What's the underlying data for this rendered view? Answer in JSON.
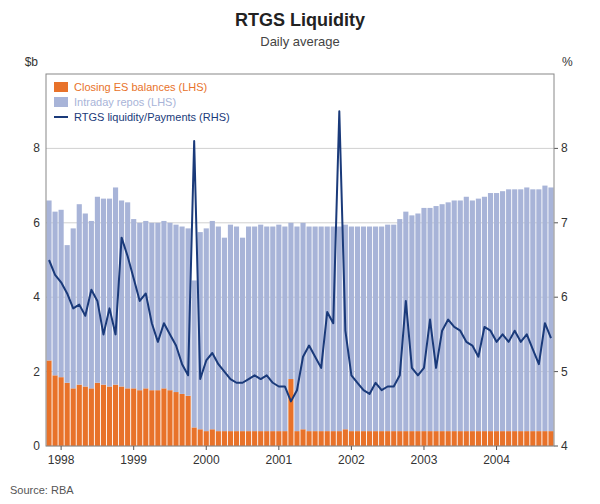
{
  "chart_data": {
    "type": "bar",
    "title": "RTGS Liquidity",
    "subtitle": "Daily average",
    "y_label": "$b",
    "y2_label": "%",
    "source": "Source: RBA",
    "stacked": true,
    "grid": true,
    "legend": "upper left",
    "categories": [
      null,
      null,
      "1998",
      null,
      null,
      null,
      null,
      null,
      null,
      null,
      null,
      null,
      null,
      null,
      "1999",
      null,
      null,
      null,
      null,
      null,
      null,
      null,
      null,
      null,
      null,
      null,
      "2000",
      null,
      null,
      null,
      null,
      null,
      null,
      null,
      null,
      null,
      null,
      null,
      "2001",
      null,
      null,
      null,
      null,
      null,
      null,
      null,
      null,
      null,
      null,
      null,
      "2002",
      null,
      null,
      null,
      null,
      null,
      null,
      null,
      null,
      null,
      null,
      null,
      "2003",
      null,
      null,
      null,
      null,
      null,
      null,
      null,
      null,
      null,
      null,
      null,
      "2004",
      null,
      null,
      null,
      null,
      null,
      null,
      null,
      null,
      null
    ],
    "ylim": [
      0,
      10
    ],
    "yticks": [
      0,
      2,
      4,
      6,
      8
    ],
    "y2lim": [
      4,
      9
    ],
    "y2ticks": [
      4,
      5,
      6,
      7,
      8
    ],
    "series": [
      {
        "name": "Closing ES balances ​(LHS)",
        "type": "bar",
        "color": "#E8722A",
        "values": [
          2.3,
          1.9,
          1.85,
          1.7,
          1.55,
          1.65,
          1.6,
          1.55,
          1.7,
          1.65,
          1.6,
          1.65,
          1.6,
          1.55,
          1.55,
          1.5,
          1.55,
          1.5,
          1.5,
          1.55,
          1.5,
          1.45,
          1.4,
          1.35,
          0.5,
          0.45,
          0.4,
          0.45,
          0.4,
          0.4,
          0.4,
          0.4,
          0.4,
          0.4,
          0.4,
          0.4,
          0.4,
          0.4,
          0.4,
          0.4,
          1.8,
          0.4,
          0.45,
          0.4,
          0.4,
          0.4,
          0.4,
          0.4,
          0.4,
          0.45,
          0.4,
          0.4,
          0.4,
          0.4,
          0.4,
          0.4,
          0.4,
          0.4,
          0.4,
          0.4,
          0.4,
          0.4,
          0.4,
          0.4,
          0.4,
          0.4,
          0.4,
          0.4,
          0.4,
          0.4,
          0.4,
          0.4,
          0.4,
          0.4,
          0.4,
          0.4,
          0.4,
          0.4,
          0.4,
          0.4,
          0.4,
          0.4,
          0.4,
          0.4
        ]
      },
      {
        "name": "Intraday repos ​(LHS)",
        "type": "bar",
        "color": "#A8B4D8",
        "values": [
          4.3,
          4.4,
          4.5,
          3.7,
          4.3,
          4.85,
          4.65,
          4.5,
          5.0,
          5.0,
          5.05,
          5.3,
          5.0,
          5.0,
          4.55,
          4.5,
          4.5,
          4.5,
          4.5,
          4.5,
          4.5,
          4.5,
          4.5,
          4.5,
          3.95,
          5.3,
          5.45,
          5.6,
          5.5,
          5.2,
          5.55,
          5.5,
          5.2,
          5.5,
          5.5,
          5.55,
          5.5,
          5.5,
          5.55,
          5.5,
          4.2,
          5.5,
          5.55,
          5.5,
          5.5,
          5.5,
          5.5,
          5.5,
          5.5,
          5.5,
          5.5,
          5.5,
          5.5,
          5.5,
          5.5,
          5.5,
          5.55,
          5.55,
          5.7,
          5.9,
          5.8,
          5.85,
          6.0,
          6.0,
          6.05,
          6.1,
          6.15,
          6.2,
          6.2,
          6.3,
          6.2,
          6.25,
          6.3,
          6.4,
          6.4,
          6.45,
          6.5,
          6.5,
          6.5,
          6.55,
          6.5,
          6.5,
          6.6,
          6.55
        ]
      },
      {
        "name": "RTGS liquidity/Payments ​(RHS)",
        "type": "line",
        "axis": "y2",
        "color": "#1A3A7A",
        "values": [
          6.5,
          6.3,
          6.2,
          6.05,
          5.85,
          5.9,
          5.75,
          6.1,
          5.95,
          5.5,
          5.85,
          5.5,
          6.8,
          6.55,
          6.25,
          5.95,
          6.05,
          5.65,
          5.4,
          5.65,
          5.5,
          5.35,
          5.1,
          4.95,
          8.1,
          4.9,
          5.15,
          5.25,
          5.1,
          5.0,
          4.9,
          4.85,
          4.85,
          4.9,
          4.95,
          4.9,
          4.95,
          4.85,
          4.8,
          4.8,
          4.6,
          4.75,
          5.2,
          5.35,
          5.2,
          5.05,
          5.8,
          5.65,
          8.5,
          5.55,
          4.95,
          4.85,
          4.75,
          4.7,
          4.85,
          4.75,
          4.8,
          4.8,
          4.95,
          5.95,
          5.05,
          4.95,
          5.05,
          5.7,
          5.05,
          5.55,
          5.7,
          5.6,
          5.55,
          5.4,
          5.35,
          5.2,
          5.6,
          5.55,
          5.4,
          5.5,
          5.4,
          5.55,
          5.4,
          5.5,
          5.3,
          5.1,
          5.65,
          5.45
        ]
      }
    ]
  }
}
